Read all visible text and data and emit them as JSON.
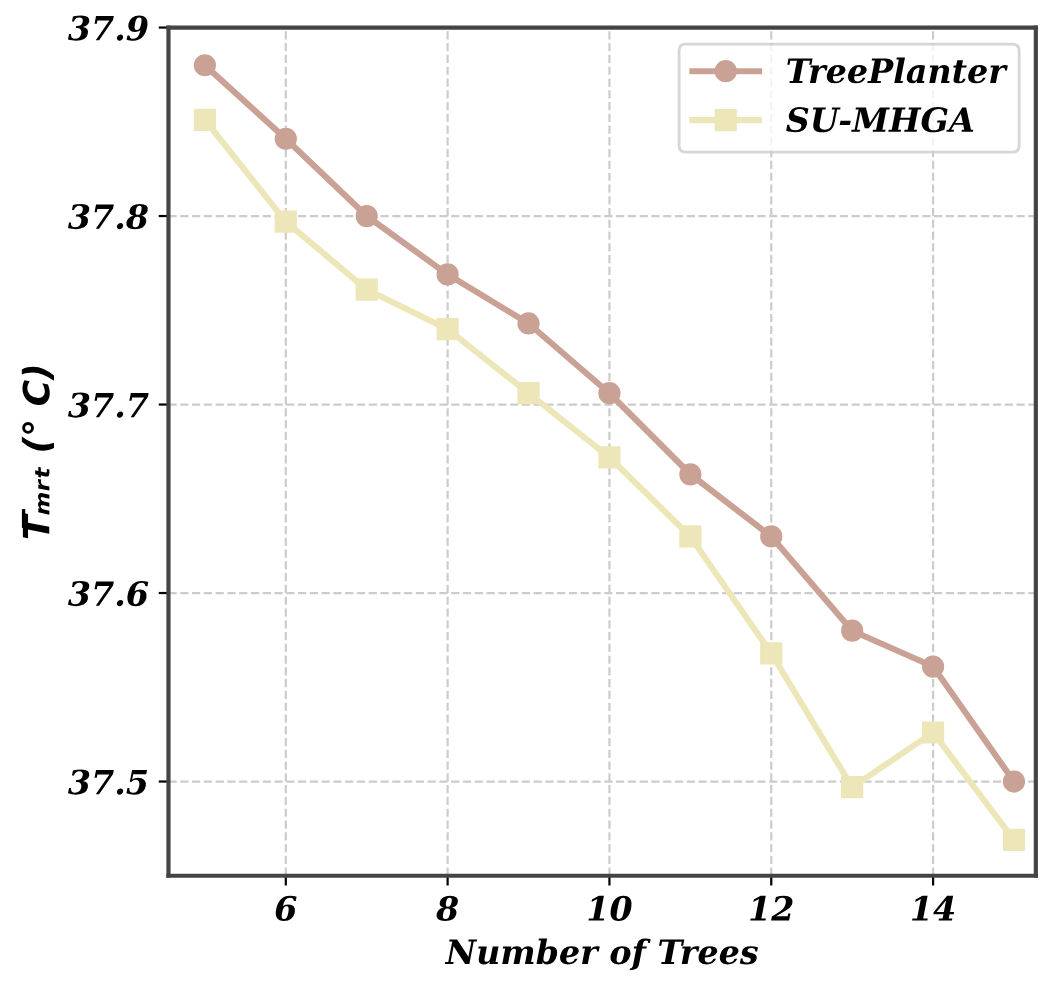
{
  "chart_data": {
    "type": "line",
    "xlabel": "Number of Trees",
    "ylabel": "T̅ₘᵣₜ (° C)",
    "x": [
      5,
      6,
      7,
      8,
      9,
      10,
      11,
      12,
      13,
      14,
      15
    ],
    "series": [
      {
        "name": "TreePlanter",
        "color": "#c9a295",
        "marker": "circle",
        "values": [
          37.88,
          37.841,
          37.8,
          37.769,
          37.743,
          37.706,
          37.663,
          37.63,
          37.58,
          37.561,
          37.5
        ]
      },
      {
        "name": "SU-MHGA",
        "color": "#ede6b8",
        "marker": "square",
        "values": [
          37.851,
          37.797,
          37.761,
          37.74,
          37.706,
          37.672,
          37.63,
          37.568,
          37.497,
          37.526,
          37.469
        ]
      }
    ],
    "xlim": [
      4.55,
      15.27
    ],
    "ylim": [
      37.45,
      37.9
    ],
    "xticks": [
      6,
      8,
      10,
      12,
      14
    ],
    "yticks": [
      37.5,
      37.6,
      37.7,
      37.8,
      37.9
    ],
    "grid": true,
    "legend": "top right",
    "line_style": "solid"
  }
}
